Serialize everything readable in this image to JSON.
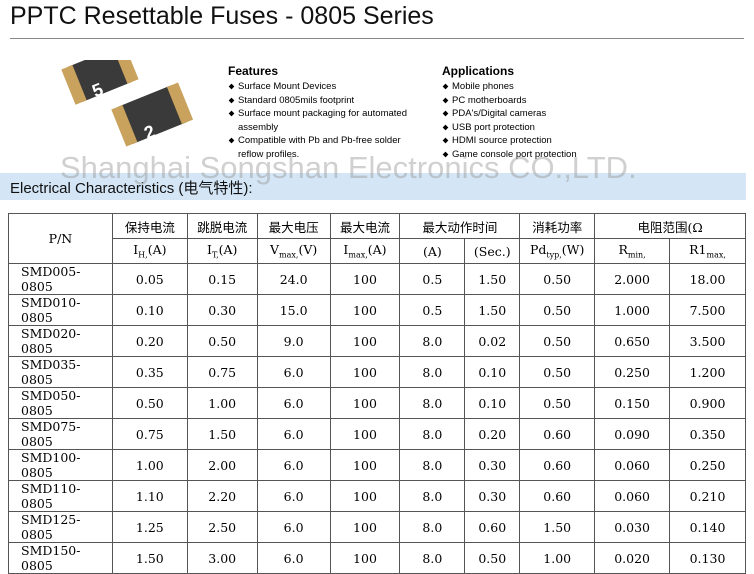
{
  "header": {
    "title": "PPTC Resettable Fuses - 0805 Series"
  },
  "image_labels": [
    "5",
    "2"
  ],
  "features": {
    "heading": "Features",
    "items": [
      "Surface Mount Devices",
      "Standard 0805mils footprint",
      "Surface mount packaging for automated assembly",
      "Compatible with Pb and Pb-free solder reflow profiles."
    ]
  },
  "applications": {
    "heading": "Applications",
    "items": [
      "Mobile  phones",
      "PC  motherboards",
      "PDA's/Digital cameras",
      "USB port protection",
      "HDMI source protection",
      "Game console port protection"
    ]
  },
  "watermark": "Shanghai Songshan Electronics CO.,LTD.",
  "section": "Electrical Characteristics (电气特性):",
  "table": {
    "header1": [
      {
        "text": "P/N",
        "colspan": 1,
        "rowspan": 2
      },
      {
        "text": "保持电流",
        "colspan": 1,
        "rowspan": 1
      },
      {
        "text": "跳脱电流",
        "colspan": 1,
        "rowspan": 1
      },
      {
        "text": "最大电压",
        "colspan": 1,
        "rowspan": 1
      },
      {
        "text": "最大电流",
        "colspan": 1,
        "rowspan": 1
      },
      {
        "text": "最大动作时间",
        "colspan": 2,
        "rowspan": 1
      },
      {
        "text": "消耗功率",
        "colspan": 1,
        "rowspan": 1
      },
      {
        "text": "电阻范围(Ω",
        "colspan": 2,
        "rowspan": 1
      }
    ],
    "header2": [
      {
        "main": "I",
        "sub": "H,",
        "unit": "(A)"
      },
      {
        "main": "I",
        "sub": "T,",
        "unit": "(A)"
      },
      {
        "main": "V",
        "sub": "max,",
        "unit": "(V)"
      },
      {
        "main": "I",
        "sub": "max,",
        "unit": "(A)"
      },
      {
        "main": "",
        "sub": "",
        "unit": "(A)"
      },
      {
        "main": "",
        "sub": "",
        "unit": "(Sec.)"
      },
      {
        "main": "Pd",
        "sub": "typ,",
        "unit": "(W)"
      },
      {
        "main": "R",
        "sub": "min,",
        "unit": ""
      },
      {
        "main": "R1",
        "sub": "max,",
        "unit": ""
      }
    ],
    "rows": [
      [
        "SMD005-0805",
        "0.05",
        "0.15",
        "24.0",
        "100",
        "0.5",
        "1.50",
        "0.50",
        "2.000",
        "18.00"
      ],
      [
        "SMD010-0805",
        "0.10",
        "0.30",
        "15.0",
        "100",
        "0.5",
        "1.50",
        "0.50",
        "1.000",
        "7.500"
      ],
      [
        "SMD020-0805",
        "0.20",
        "0.50",
        "9.0",
        "100",
        "8.0",
        "0.02",
        "0.50",
        "0.650",
        "3.500"
      ],
      [
        "SMD035-0805",
        "0.35",
        "0.75",
        "6.0",
        "100",
        "8.0",
        "0.10",
        "0.50",
        "0.250",
        "1.200"
      ],
      [
        "SMD050-0805",
        "0.50",
        "1.00",
        "6.0",
        "100",
        "8.0",
        "0.10",
        "0.50",
        "0.150",
        "0.900"
      ],
      [
        "SMD075-0805",
        "0.75",
        "1.50",
        "6.0",
        "100",
        "8.0",
        "0.20",
        "0.60",
        "0.090",
        "0.350"
      ],
      [
        "SMD100-0805",
        "1.00",
        "2.00",
        "6.0",
        "100",
        "8.0",
        "0.30",
        "0.60",
        "0.060",
        "0.250"
      ],
      [
        "SMD110-0805",
        "1.10",
        "2.20",
        "6.0",
        "100",
        "8.0",
        "0.30",
        "0.60",
        "0.060",
        "0.210"
      ],
      [
        "SMD125-0805",
        "1.25",
        "2.50",
        "6.0",
        "100",
        "8.0",
        "0.60",
        "1.50",
        "0.030",
        "0.140"
      ],
      [
        "SMD150-0805",
        "1.50",
        "3.00",
        "6.0",
        "100",
        "8.0",
        "0.50",
        "1.00",
        "0.020",
        "0.130"
      ]
    ]
  }
}
